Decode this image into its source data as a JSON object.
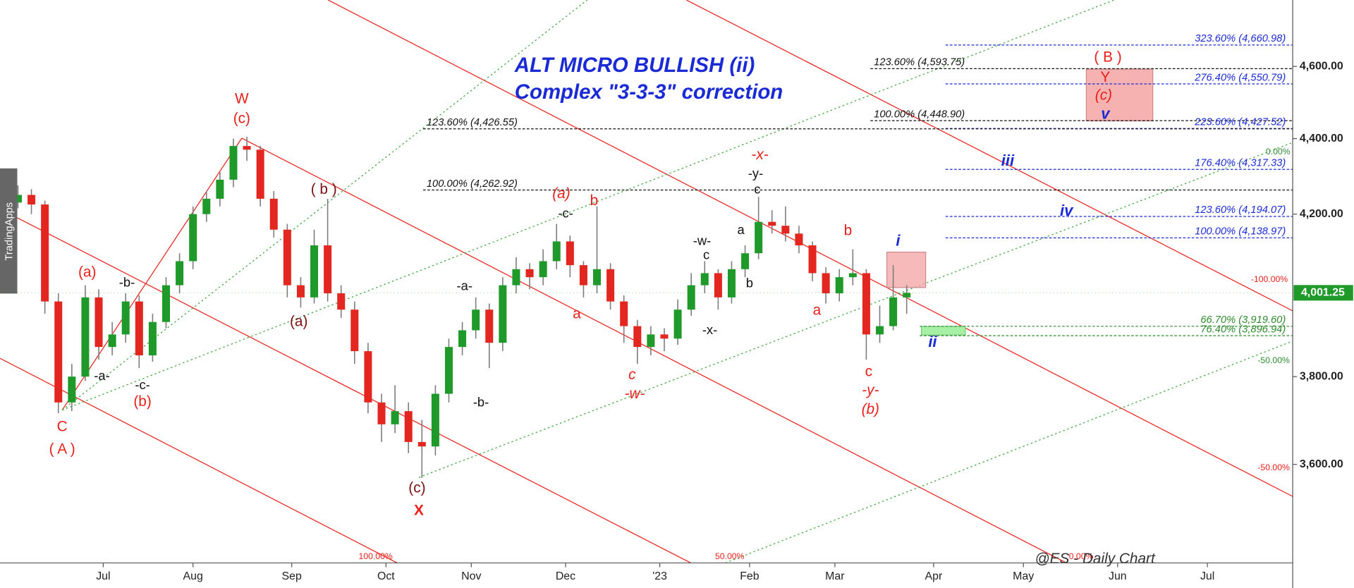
{
  "chart_data": {
    "type": "candlestick",
    "title": "ALT MICRO BULLISH (ii)",
    "subtitle": "Complex \"3-3-3\" correction",
    "x": [
      1,
      4,
      7,
      10,
      13,
      16,
      19,
      22,
      25,
      28,
      31,
      34,
      37,
      40,
      43,
      46,
      49,
      52,
      55,
      58,
      61,
      64,
      67,
      70,
      73,
      76,
      79,
      82,
      85,
      88,
      91,
      94,
      97,
      100,
      103,
      106,
      109,
      112,
      115,
      118,
      121,
      124,
      127,
      130,
      133,
      136,
      139,
      142,
      145,
      148,
      151,
      154,
      157,
      160,
      163,
      166,
      169,
      172,
      175,
      178,
      181,
      184,
      187,
      190,
      193,
      196,
      199,
      202
    ],
    "open": [
      4210,
      4230,
      4250,
      4225,
      3980,
      3740,
      3800,
      3990,
      3870,
      3900,
      3980,
      3850,
      3930,
      4020,
      4080,
      4200,
      4240,
      4290,
      4380,
      4370,
      4240,
      4160,
      4020,
      3990,
      4120,
      4000,
      3960,
      3860,
      3740,
      3690,
      3720,
      3650,
      3640,
      3760,
      3870,
      3910,
      3960,
      3880,
      4020,
      4060,
      4040,
      4080,
      4130,
      4070,
      4020,
      4060,
      3980,
      3920,
      3870,
      3900,
      3890,
      3960,
      4020,
      4050,
      3990,
      4060,
      4100,
      4180,
      4170,
      4150,
      4120,
      4050,
      4000,
      4040,
      4050,
      3900,
      3920,
      3990
    ],
    "high": [
      4260,
      4275,
      4265,
      4235,
      4000,
      3830,
      4020,
      4010,
      3930,
      4000,
      3995,
      3950,
      4040,
      4100,
      4220,
      4260,
      4310,
      4400,
      4405,
      4380,
      4260,
      4175,
      4040,
      4160,
      4240,
      4020,
      3980,
      3880,
      3760,
      3780,
      3740,
      3700,
      3780,
      3890,
      3930,
      3990,
      3975,
      4040,
      4090,
      4075,
      4110,
      4175,
      4145,
      4080,
      4220,
      4075,
      3995,
      3935,
      3920,
      3915,
      3985,
      4050,
      4080,
      4060,
      4080,
      4120,
      4245,
      4210,
      4220,
      4170,
      4130,
      4065,
      4060,
      4110,
      4060,
      3970,
      4070,
      4020
    ],
    "low": [
      4190,
      4215,
      4200,
      3950,
      3715,
      3720,
      3790,
      3840,
      3850,
      3880,
      3820,
      3835,
      3915,
      4000,
      4060,
      4180,
      4220,
      4270,
      4340,
      4220,
      4140,
      3990,
      3965,
      3975,
      3980,
      3940,
      3830,
      3715,
      3650,
      3670,
      3625,
      3570,
      3620,
      3740,
      3850,
      3890,
      3820,
      3860,
      4000,
      4010,
      4020,
      4060,
      4040,
      3990,
      4000,
      3960,
      3880,
      3830,
      3850,
      3860,
      3875,
      3945,
      4000,
      3960,
      3975,
      4040,
      4085,
      4150,
      4130,
      4100,
      4030,
      3975,
      3980,
      4020,
      3840,
      3880,
      3910,
      3950
    ],
    "close": [
      4230,
      4250,
      4225,
      3980,
      3740,
      3800,
      3990,
      3870,
      3900,
      3980,
      3850,
      3930,
      4020,
      4080,
      4200,
      4240,
      4290,
      4380,
      4370,
      4240,
      4160,
      4020,
      3990,
      4120,
      4000,
      3960,
      3860,
      3740,
      3690,
      3720,
      3650,
      3640,
      3760,
      3870,
      3910,
      3960,
      3880,
      4020,
      4060,
      4040,
      4080,
      4130,
      4070,
      4020,
      4060,
      3980,
      3920,
      3870,
      3900,
      3890,
      3960,
      4020,
      4050,
      3990,
      4060,
      4100,
      4180,
      4170,
      4150,
      4120,
      4050,
      4000,
      4040,
      4050,
      3900,
      3920,
      3990,
      4001.25
    ],
    "up_color": "#1f9a2a",
    "down_color": "#e3261f",
    "wick_color": "#7d7d7d",
    "xlim": [
      0,
      288
    ],
    "xticks": [
      {
        "value": 23,
        "label": "Jul"
      },
      {
        "value": 43,
        "label": "Aug"
      },
      {
        "value": 65,
        "label": "Sep"
      },
      {
        "value": 86,
        "label": "Oct"
      },
      {
        "value": 105,
        "label": "Nov"
      },
      {
        "value": 126,
        "label": "Dec"
      },
      {
        "value": 147,
        "label": "'23"
      },
      {
        "value": 167,
        "label": "Feb"
      },
      {
        "value": 186,
        "label": "Mar"
      },
      {
        "value": 208,
        "label": "Apr"
      },
      {
        "value": 228,
        "label": "May"
      },
      {
        "value": 249,
        "label": "Jun"
      },
      {
        "value": 269,
        "label": "Jul"
      }
    ],
    "ylim": [
      3388,
      4792
    ],
    "log_scale": true,
    "yticks": [
      {
        "value": 3600,
        "label": "3,600.00"
      },
      {
        "value": 3800,
        "label": "3,800.00"
      },
      {
        "value": 4200,
        "label": "4,200.00"
      },
      {
        "value": 4400,
        "label": "4,400.00"
      },
      {
        "value": 4600,
        "label": "4,600.00"
      }
    ],
    "last_price": {
      "value": 4001.25,
      "label": "4,001.25",
      "color": "#1f9a2a"
    },
    "levels": [
      {
        "price": 4660.98,
        "label": "323.60% (4,660.98)",
        "color": "#1a2bd6"
      },
      {
        "price": 4593.75,
        "label": "123.60% (4,593.75)",
        "color": "#111111"
      },
      {
        "price": 4550.79,
        "label": "276.40% (4,550.79)",
        "color": "#1a2bd6"
      },
      {
        "price": 4448.9,
        "label": "100.00% (4,448.90)",
        "color": "#111111"
      },
      {
        "price": 4427.52,
        "label": "223.60% (4,427.52)",
        "color": "#1a2bd6"
      },
      {
        "price": 4426.55,
        "label": "123.60% (4,426.55)",
        "color": "#111111"
      },
      {
        "price": 4317.33,
        "label": "176.40% (4,317.33)",
        "color": "#1a2bd6"
      },
      {
        "price": 4262.92,
        "label": "100.00% (4,262.92)",
        "color": "#111111"
      },
      {
        "price": 4194.07,
        "label": "123.60% (4,194.07)",
        "color": "#1a2bd6"
      },
      {
        "price": 4138.97,
        "label": "100.00% (4,138.97)",
        "color": "#1a2bd6"
      },
      {
        "price": 3919.6,
        "label": "66.70% (3,919.60)",
        "color": "#2e8b2e"
      },
      {
        "price": 3896.94,
        "label": "76.40% (3,896.94)",
        "color": "#2e8b2e"
      }
    ],
    "channel_labels": [
      "0.00%",
      "-100.00%",
      "-50.00%",
      "-50.00%",
      "100.00%",
      "50.00%",
      "0.00%"
    ],
    "annotations": [
      "W",
      "(c)",
      "C",
      "( A )",
      "(a)",
      "(b)",
      "(a)",
      "b",
      "a",
      "c",
      "-w-",
      "-x-",
      "b",
      "a",
      "c",
      "-y-",
      "(b)",
      "( B )",
      "Y",
      "(c)",
      "X",
      "( b )",
      "(a)",
      "(c)",
      "-b-",
      "-a-",
      "-c-",
      "-a-",
      "-b-",
      "-c-",
      "-w-",
      "c",
      "-x-",
      "a",
      "b",
      "-y-",
      "c",
      "i",
      "iii",
      "iv",
      "ii",
      "v"
    ],
    "watermarks": [
      "TradingApps",
      "@ES - Daily Chart"
    ]
  }
}
